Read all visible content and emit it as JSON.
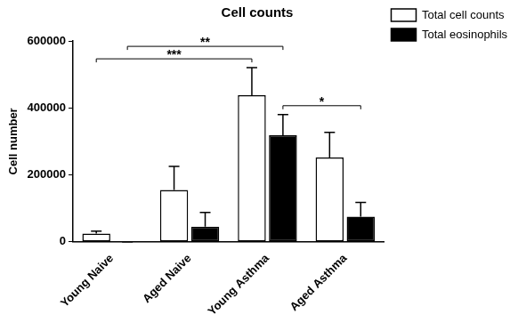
{
  "chart_data": {
    "type": "bar",
    "title": "Cell counts",
    "y_label": "Cell number",
    "categories": [
      "Young Naive",
      "Aged Naive",
      "Young Asthma",
      "Aged Asthma"
    ],
    "series": [
      {
        "name": "Total cell counts",
        "color": "#ffffff",
        "values": [
          25000,
          155000,
          438000,
          252000
        ],
        "errors": [
          7000,
          70000,
          82000,
          75000
        ]
      },
      {
        "name": "Total eosinophils",
        "color": "#000000",
        "values": [
          0,
          45000,
          318000,
          75000
        ],
        "errors": [
          0,
          43000,
          62000,
          43000
        ]
      }
    ],
    "ylim": [
      0,
      600000
    ],
    "yticks": [
      0,
      200000,
      400000,
      600000
    ],
    "grid": false,
    "legend": "right",
    "annotations": [
      {
        "text": "***",
        "from": {
          "category": "Young Naive",
          "series": "Total cell counts"
        },
        "to": {
          "category": "Young Asthma",
          "series": "Total cell counts"
        }
      },
      {
        "text": "**",
        "from": {
          "category": "Young Naive",
          "series": "Total eosinophils"
        },
        "to": {
          "category": "Young Asthma",
          "series": "Total eosinophils"
        }
      },
      {
        "text": "*",
        "from": {
          "category": "Young Asthma",
          "series": "Total eosinophils"
        },
        "to": {
          "category": "Aged Asthma",
          "series": "Total eosinophils"
        }
      }
    ]
  }
}
